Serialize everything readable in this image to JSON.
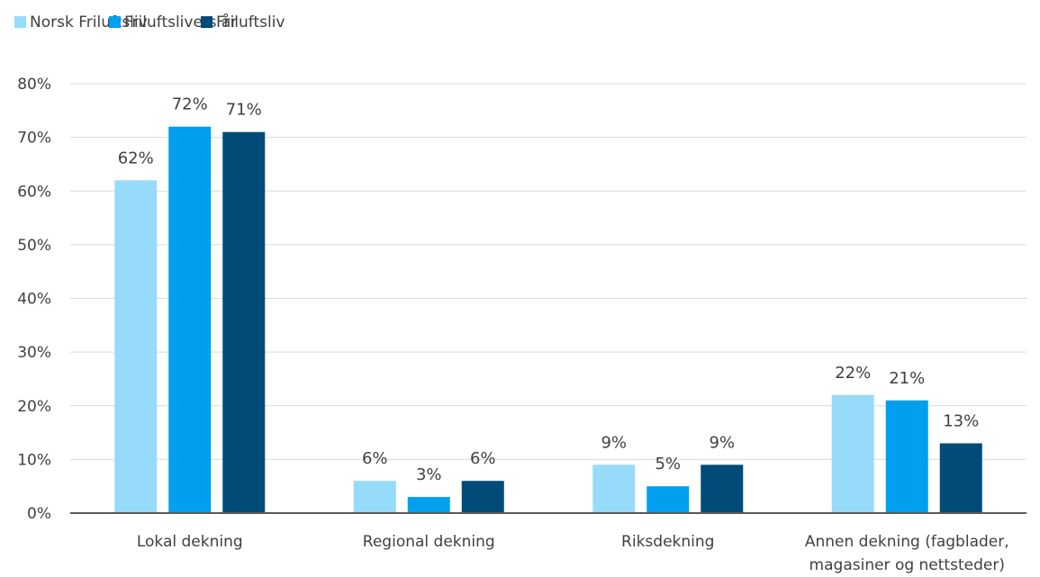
{
  "chart_data": {
    "type": "bar",
    "title": "",
    "xlabel": "",
    "ylabel": "",
    "categories": [
      [
        "Lokal dekning"
      ],
      [
        "Regional dekning"
      ],
      [
        "Riksdekning"
      ],
      [
        "Annen dekning (fagblader,",
        "magasiner og nettsteder)"
      ]
    ],
    "series": [
      {
        "name": "Norsk Friluftsliv",
        "color": "#97dbfb",
        "values": [
          62,
          6,
          9,
          22
        ]
      },
      {
        "name": "Friluftslivets år",
        "color": "#00a0ef",
        "values": [
          72,
          3,
          5,
          21
        ]
      },
      {
        "name": "Friluftsliv",
        "color": "#004b78",
        "values": [
          71,
          6,
          9,
          13
        ]
      }
    ],
    "ylim": [
      0,
      80
    ],
    "yticks": [
      0,
      10,
      20,
      30,
      40,
      50,
      60,
      70,
      80
    ],
    "value_suffix": "%",
    "grid": true,
    "legend_position": "top-left"
  }
}
